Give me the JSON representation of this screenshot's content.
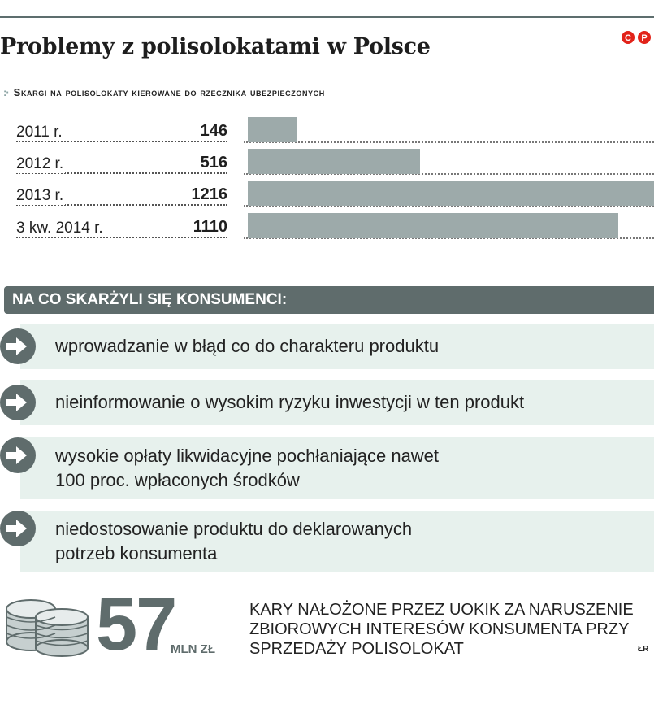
{
  "title": "Problemy z polisolokatami w Polsce",
  "logo": {
    "text": "©P",
    "color": "#e2231a"
  },
  "subtitle": "Skargi na polisolokaty kierowane do rzecznika ubezpieczonych",
  "chart_data": {
    "type": "bar",
    "orientation": "horizontal",
    "title": "Skargi na polisolokaty kierowane do rzecznika ubezpieczonych",
    "categories": [
      "2011 r.",
      "2012 r.",
      "2013 r.",
      "3 kw. 2014 r."
    ],
    "values": [
      146,
      516,
      1216,
      1110
    ],
    "value_labels": [
      "146",
      "516",
      "1216",
      "1110"
    ],
    "xlim": [
      0,
      1216
    ],
    "bar_color": "#9daaaa"
  },
  "complaints": {
    "header": "NA CO SKARŻYLI SIĘ KONSUMENCI:",
    "items": [
      {
        "text": "wprowadzanie w błąd co do charakteru produktu"
      },
      {
        "text": "nieinformowanie o wysokim ryzyku inwestycji w ten produkt"
      },
      {
        "text": "wysokie opłaty likwidacyjne pochłaniające nawet",
        "text2": "100 proc. wpłaconych środków"
      },
      {
        "text": "niedostosowanie produktu do deklarowanych",
        "text2": "potrzeb konsumenta"
      }
    ]
  },
  "fine": {
    "number": "57",
    "unit": "MLN ZŁ",
    "description": "Kary nałożone przez UOKiK za naruszenie zbiorowych interesów konsumenta przy sprzedaży polisolokat",
    "source": "ŁR"
  },
  "colors": {
    "accent": "#5f6c6c",
    "bar": "#9daaaa",
    "panel": "#e7f1ed"
  }
}
